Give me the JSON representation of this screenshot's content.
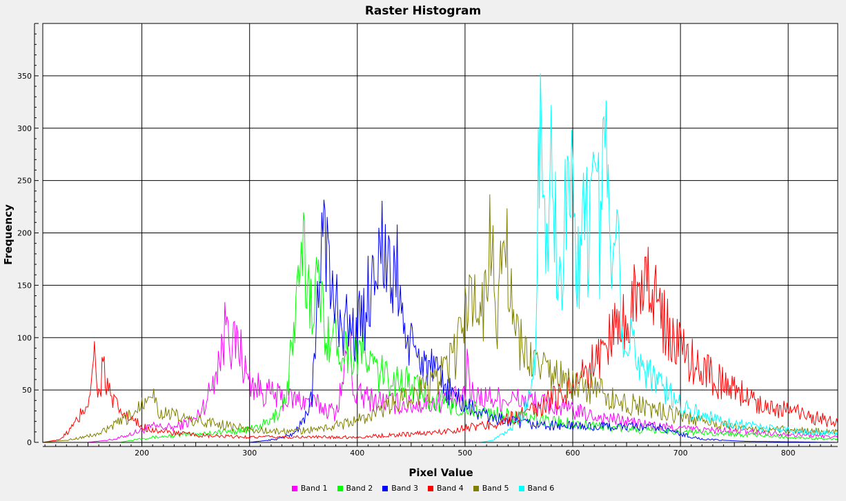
{
  "chart_data": {
    "type": "line",
    "title": "Raster Histogram",
    "xlabel": "Pixel Value",
    "ylabel": "Frequency",
    "xlim": [
      108,
      846
    ],
    "ylim": [
      0,
      400
    ],
    "xticks": [
      200,
      300,
      400,
      500,
      600,
      700,
      800
    ],
    "yticks": [
      0,
      50,
      100,
      150,
      200,
      250,
      300,
      350
    ],
    "grid": true,
    "legend_position": "bottom",
    "series": [
      {
        "name": "Band 1",
        "color": "#ff00ff",
        "points": [
          [
            108,
            0
          ],
          [
            150,
            0
          ],
          [
            175,
            3
          ],
          [
            190,
            8
          ],
          [
            210,
            15
          ],
          [
            230,
            14
          ],
          [
            250,
            22
          ],
          [
            262,
            45
          ],
          [
            270,
            75
          ],
          [
            276,
            95
          ],
          [
            280,
            144
          ],
          [
            283,
            88
          ],
          [
            290,
            95
          ],
          [
            298,
            60
          ],
          [
            310,
            50
          ],
          [
            330,
            42
          ],
          [
            350,
            40
          ],
          [
            365,
            35
          ],
          [
            380,
            28
          ],
          [
            388,
            65
          ],
          [
            392,
            110
          ],
          [
            397,
            45
          ],
          [
            420,
            40
          ],
          [
            450,
            35
          ],
          [
            480,
            40
          ],
          [
            500,
            42
          ],
          [
            502,
            85
          ],
          [
            505,
            45
          ],
          [
            530,
            42
          ],
          [
            560,
            40
          ],
          [
            580,
            35
          ],
          [
            600,
            30
          ],
          [
            620,
            25
          ],
          [
            650,
            20
          ],
          [
            680,
            15
          ],
          [
            720,
            12
          ],
          [
            760,
            10
          ],
          [
            800,
            8
          ],
          [
            846,
            5
          ]
        ]
      },
      {
        "name": "Band 2",
        "color": "#00ff00",
        "points": [
          [
            108,
            0
          ],
          [
            180,
            0
          ],
          [
            200,
            4
          ],
          [
            250,
            8
          ],
          [
            300,
            12
          ],
          [
            320,
            20
          ],
          [
            330,
            35
          ],
          [
            335,
            50
          ],
          [
            340,
            100
          ],
          [
            345,
            135
          ],
          [
            350,
            178
          ],
          [
            356,
            140
          ],
          [
            362,
            150
          ],
          [
            368,
            125
          ],
          [
            375,
            100
          ],
          [
            390,
            92
          ],
          [
            405,
            85
          ],
          [
            420,
            65
          ],
          [
            440,
            60
          ],
          [
            460,
            48
          ],
          [
            475,
            40
          ],
          [
            490,
            35
          ],
          [
            510,
            30
          ],
          [
            540,
            25
          ],
          [
            570,
            22
          ],
          [
            600,
            18
          ],
          [
            630,
            15
          ],
          [
            660,
            12
          ],
          [
            700,
            10
          ],
          [
            750,
            8
          ],
          [
            800,
            5
          ],
          [
            846,
            3
          ]
        ]
      },
      {
        "name": "Band 3",
        "color": "#0000ff",
        "points": [
          [
            108,
            0
          ],
          [
            300,
            0
          ],
          [
            325,
            3
          ],
          [
            340,
            8
          ],
          [
            350,
            20
          ],
          [
            358,
            45
          ],
          [
            362,
            100
          ],
          [
            365,
            160
          ],
          [
            368,
            239
          ],
          [
            371,
            200
          ],
          [
            375,
            140
          ],
          [
            385,
            120
          ],
          [
            395,
            105
          ],
          [
            405,
            115
          ],
          [
            412,
            150
          ],
          [
            418,
            185
          ],
          [
            423,
            192
          ],
          [
            430,
            150
          ],
          [
            437,
            165
          ],
          [
            445,
            100
          ],
          [
            452,
            85
          ],
          [
            465,
            75
          ],
          [
            480,
            55
          ],
          [
            500,
            35
          ],
          [
            520,
            25
          ],
          [
            550,
            18
          ],
          [
            580,
            16
          ],
          [
            620,
            15
          ],
          [
            650,
            15
          ],
          [
            680,
            14
          ],
          [
            700,
            8
          ],
          [
            720,
            3
          ],
          [
            760,
            1
          ],
          [
            846,
            0
          ]
        ]
      },
      {
        "name": "Band 4",
        "color": "#ff0000",
        "points": [
          [
            108,
            0
          ],
          [
            125,
            3
          ],
          [
            140,
            20
          ],
          [
            150,
            40
          ],
          [
            156,
            83
          ],
          [
            160,
            45
          ],
          [
            164,
            74
          ],
          [
            168,
            50
          ],
          [
            175,
            35
          ],
          [
            185,
            25
          ],
          [
            200,
            15
          ],
          [
            220,
            10
          ],
          [
            260,
            6
          ],
          [
            300,
            5
          ],
          [
            350,
            5
          ],
          [
            400,
            5
          ],
          [
            450,
            8
          ],
          [
            480,
            10
          ],
          [
            500,
            14
          ],
          [
            520,
            16
          ],
          [
            540,
            22
          ],
          [
            560,
            28
          ],
          [
            580,
            40
          ],
          [
            600,
            55
          ],
          [
            620,
            75
          ],
          [
            640,
            110
          ],
          [
            655,
            130
          ],
          [
            665,
            176
          ],
          [
            680,
            120
          ],
          [
            700,
            90
          ],
          [
            720,
            70
          ],
          [
            740,
            55
          ],
          [
            760,
            45
          ],
          [
            780,
            35
          ],
          [
            800,
            30
          ],
          [
            820,
            25
          ],
          [
            846,
            18
          ]
        ]
      },
      {
        "name": "Band 5",
        "color": "#808000",
        "points": [
          [
            108,
            0
          ],
          [
            130,
            2
          ],
          [
            160,
            8
          ],
          [
            190,
            25
          ],
          [
            209,
            53
          ],
          [
            215,
            30
          ],
          [
            240,
            22
          ],
          [
            270,
            18
          ],
          [
            300,
            12
          ],
          [
            330,
            10
          ],
          [
            360,
            12
          ],
          [
            390,
            18
          ],
          [
            420,
            28
          ],
          [
            445,
            45
          ],
          [
            470,
            55
          ],
          [
            490,
            80
          ],
          [
            508,
            150
          ],
          [
            515,
            110
          ],
          [
            522,
            203
          ],
          [
            530,
            120
          ],
          [
            538,
            198
          ],
          [
            545,
            100
          ],
          [
            560,
            80
          ],
          [
            580,
            65
          ],
          [
            600,
            55
          ],
          [
            620,
            50
          ],
          [
            640,
            40
          ],
          [
            660,
            35
          ],
          [
            680,
            30
          ],
          [
            700,
            25
          ],
          [
            730,
            18
          ],
          [
            760,
            14
          ],
          [
            800,
            12
          ],
          [
            846,
            10
          ]
        ]
      },
      {
        "name": "Band 6",
        "color": "#00ffff",
        "points": [
          [
            108,
            0
          ],
          [
            500,
            0
          ],
          [
            515,
            0
          ],
          [
            525,
            2
          ],
          [
            540,
            10
          ],
          [
            555,
            30
          ],
          [
            562,
            60
          ],
          [
            566,
            100
          ],
          [
            568,
            352
          ],
          [
            572,
            200
          ],
          [
            578,
            195
          ],
          [
            580,
            308
          ],
          [
            585,
            180
          ],
          [
            590,
            175
          ],
          [
            595,
            235
          ],
          [
            600,
            249
          ],
          [
            605,
            160
          ],
          [
            610,
            255
          ],
          [
            615,
            170
          ],
          [
            620,
            347
          ],
          [
            625,
            185
          ],
          [
            630,
            332
          ],
          [
            635,
            150
          ],
          [
            640,
            254
          ],
          [
            645,
            120
          ],
          [
            655,
            90
          ],
          [
            670,
            70
          ],
          [
            690,
            45
          ],
          [
            710,
            30
          ],
          [
            740,
            20
          ],
          [
            780,
            14
          ],
          [
            820,
            10
          ],
          [
            846,
            8
          ]
        ]
      }
    ]
  }
}
